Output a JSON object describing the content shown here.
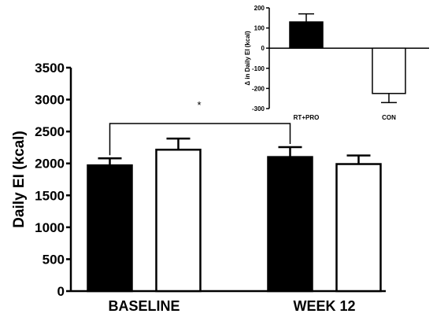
{
  "chart_data": [
    {
      "type": "bar",
      "panel": "main",
      "categories": [
        "BASELINE",
        "WEEK 12"
      ],
      "series": [
        {
          "fill": "#000000",
          "values": [
            1970,
            2100
          ],
          "error": [
            110,
            155
          ]
        },
        {
          "fill": "#ffffff",
          "values": [
            2215,
            1990
          ],
          "error": [
            175,
            135
          ]
        }
      ],
      "ylabel": "Daily EI (kcal)",
      "ylim": [
        0,
        3500
      ],
      "yticks": [
        0,
        500,
        1000,
        1500,
        2000,
        2500,
        3000,
        3500
      ],
      "ytick_labels": [
        "0",
        "500",
        "1000",
        "1500",
        "2000",
        "2500",
        "3000",
        "3500"
      ],
      "significance": {
        "label": "*",
        "between": [
          "BASELINE",
          "WEEK 12"
        ],
        "series": 0
      },
      "grid": false,
      "legend": "none"
    },
    {
      "type": "bar",
      "panel": "inset",
      "position": "top-right",
      "categories": [
        "RT+PRO",
        "CON"
      ],
      "series": [
        {
          "fills": [
            "#000000",
            "#ffffff"
          ],
          "values": [
            130,
            -225
          ],
          "error": [
            40,
            45
          ]
        }
      ],
      "ylabel": "Δ in Daily EI (kcal)",
      "ylim": [
        -300,
        200
      ],
      "yticks": [
        -300,
        -200,
        -100,
        0,
        100,
        200
      ],
      "ytick_labels": [
        "-300",
        "-200",
        "-100",
        "0",
        "100",
        "200"
      ],
      "grid": false,
      "legend": "none"
    }
  ],
  "colors": {
    "axis": "#000000",
    "filled_bar": "#000000",
    "open_bar": "#ffffff"
  }
}
